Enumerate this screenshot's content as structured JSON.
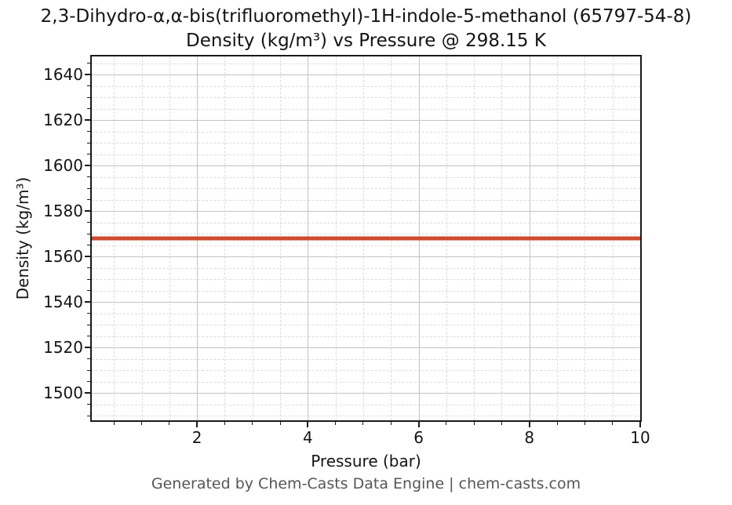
{
  "page": {
    "title_line1": "2,3-Dihydro-α,α-bis(trifluoromethyl)-1H-indole-5-methanol (65797-54-8)",
    "title_line2": "Density (kg/m³) vs Pressure @ 298.15 K",
    "footer": "Generated by Chem-Casts Data Engine | chem-casts.com"
  },
  "chart_data": {
    "type": "line",
    "title": "2,3-Dihydro-α,α-bis(trifluoromethyl)-1H-indole-5-methanol (65797-54-8)",
    "subtitle": "Density (kg/m³) vs Pressure @ 298.15 K",
    "xlabel": "Pressure (bar)",
    "ylabel": "Density (kg/m³)",
    "xlim": [
      0.1,
      10
    ],
    "ylim": [
      1488,
      1648
    ],
    "x_major_ticks": [
      2,
      4,
      6,
      8,
      10
    ],
    "x_minor_step": 0.5,
    "y_major_ticks": [
      1500,
      1520,
      1540,
      1560,
      1580,
      1600,
      1620,
      1640
    ],
    "y_minor_step": 5,
    "grid": true,
    "legend_visible": false,
    "series": [
      {
        "name": "Density",
        "color": "#cd4b2b",
        "linewidth": 5,
        "x": [
          0.1,
          10
        ],
        "y": [
          1568,
          1568
        ]
      }
    ]
  }
}
